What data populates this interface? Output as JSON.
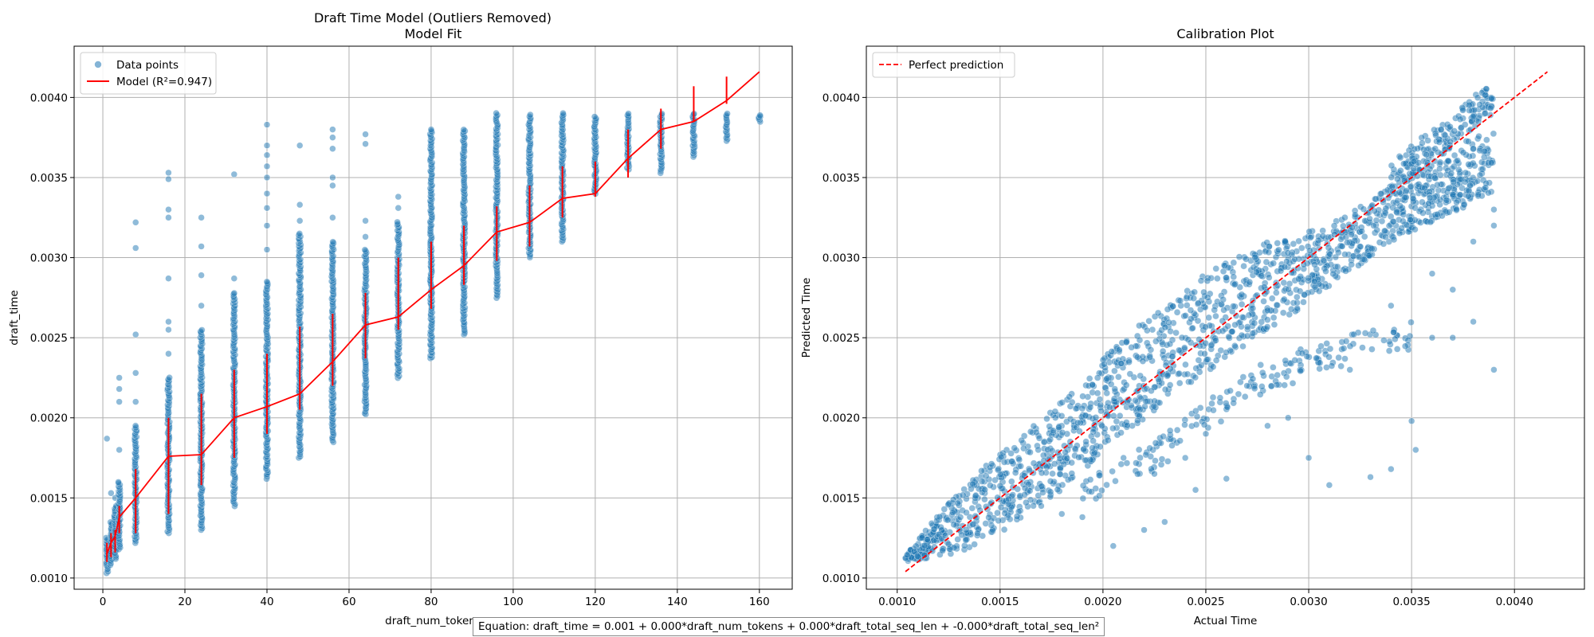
{
  "figure": {
    "suptitle": "Draft Time Model (Outliers Removed)",
    "equation": "Equation: draft_time = 0.001 + 0.000*draft_num_tokens + 0.000*draft_total_seq_len + -0.000*draft_total_seq_len²"
  },
  "colors": {
    "points": "#1f77b4",
    "model_line": "#ff0000",
    "grid": "#b0b0b0"
  },
  "chart_data": [
    {
      "type": "scatter",
      "title": "Model Fit",
      "xlabel": "draft_num_tokens",
      "ylabel": "draft_time",
      "xlim": [
        -7,
        168
      ],
      "ylim": [
        0.00093,
        0.00432
      ],
      "xticks": [
        0,
        20,
        40,
        60,
        80,
        100,
        120,
        140,
        160
      ],
      "xtick_labels": [
        "0",
        "20",
        "40",
        "60",
        "80",
        "100",
        "120",
        "140",
        "160"
      ],
      "yticks": [
        0.001,
        0.0015,
        0.002,
        0.0025,
        0.003,
        0.0035,
        0.004
      ],
      "ytick_labels": [
        "0.0010",
        "0.0015",
        "0.0020",
        "0.0025",
        "0.0030",
        "0.0035",
        "0.0040"
      ],
      "grid": true,
      "legend_position": "top-left",
      "series": [
        {
          "name": "Data points",
          "kind": "scatter",
          "columns": [
            {
              "x": 1,
              "min": 0.00103,
              "max": 0.00125,
              "outliers": [
                0.00187
              ]
            },
            {
              "x": 2,
              "min": 0.00108,
              "max": 0.00135,
              "outliers": [
                0.00153
              ]
            },
            {
              "x": 3,
              "min": 0.00112,
              "max": 0.00145,
              "outliers": [
                0.0015
              ]
            },
            {
              "x": 4,
              "min": 0.00118,
              "max": 0.0016,
              "outliers": [
                0.0018,
                0.0021,
                0.00225,
                0.00218
              ]
            },
            {
              "x": 8,
              "min": 0.00122,
              "max": 0.00195,
              "outliers": [
                0.0021,
                0.00228,
                0.00252,
                0.00306,
                0.00322
              ]
            },
            {
              "x": 16,
              "min": 0.00128,
              "max": 0.00225,
              "outliers": [
                0.0024,
                0.00255,
                0.0026,
                0.00287,
                0.00325,
                0.0033,
                0.00349,
                0.00353
              ]
            },
            {
              "x": 24,
              "min": 0.0013,
              "max": 0.00255,
              "outliers": [
                0.0027,
                0.00289,
                0.00307,
                0.00325
              ]
            },
            {
              "x": 32,
              "min": 0.00145,
              "max": 0.00278,
              "outliers": [
                0.00287,
                0.00352
              ]
            },
            {
              "x": 40,
              "min": 0.00162,
              "max": 0.00285,
              "outliers": [
                0.00305,
                0.0032,
                0.00331,
                0.0034,
                0.0035,
                0.00357,
                0.00364,
                0.0037,
                0.00383
              ]
            },
            {
              "x": 48,
              "min": 0.00175,
              "max": 0.00315,
              "outliers": [
                0.00323,
                0.00333,
                0.0037
              ]
            },
            {
              "x": 56,
              "min": 0.00185,
              "max": 0.0031,
              "outliers": [
                0.00325,
                0.00345,
                0.0035,
                0.00368,
                0.00375,
                0.0038
              ]
            },
            {
              "x": 64,
              "min": 0.00202,
              "max": 0.00305,
              "outliers": [
                0.00313,
                0.00323,
                0.00371,
                0.00377
              ]
            },
            {
              "x": 72,
              "min": 0.00225,
              "max": 0.00322,
              "outliers": [
                0.00331,
                0.00338
              ]
            },
            {
              "x": 80,
              "min": 0.00237,
              "max": 0.0038,
              "outliers": []
            },
            {
              "x": 88,
              "min": 0.00252,
              "max": 0.0038,
              "outliers": []
            },
            {
              "x": 96,
              "min": 0.00275,
              "max": 0.0039,
              "outliers": []
            },
            {
              "x": 104,
              "min": 0.003,
              "max": 0.00389,
              "outliers": []
            },
            {
              "x": 112,
              "min": 0.0031,
              "max": 0.0039,
              "outliers": []
            },
            {
              "x": 120,
              "min": 0.0034,
              "max": 0.00388,
              "outliers": []
            },
            {
              "x": 128,
              "min": 0.00355,
              "max": 0.0039,
              "outliers": []
            },
            {
              "x": 136,
              "min": 0.00353,
              "max": 0.0039,
              "outliers": []
            },
            {
              "x": 144,
              "min": 0.00363,
              "max": 0.0039,
              "outliers": []
            },
            {
              "x": 152,
              "min": 0.00373,
              "max": 0.0039,
              "outliers": []
            },
            {
              "x": 160,
              "min": 0.00385,
              "max": 0.00389,
              "outliers": []
            }
          ]
        },
        {
          "name": "Model (R²=0.947)",
          "kind": "line",
          "x": [
            1,
            2,
            3,
            4,
            8,
            16,
            24,
            32,
            40,
            48,
            56,
            64,
            72,
            80,
            88,
            96,
            104,
            112,
            120,
            128,
            136,
            144,
            152,
            160
          ],
          "y": [
            0.00115,
            0.00122,
            0.00126,
            0.00138,
            0.0015,
            0.00176,
            0.00177,
            0.002,
            0.00207,
            0.00215,
            0.00235,
            0.00258,
            0.00263,
            0.0028,
            0.00295,
            0.00316,
            0.00322,
            0.00337,
            0.0034,
            0.00362,
            0.0038,
            0.00385,
            0.00398,
            0.00416
          ],
          "column_spreads": [
            {
              "x": 1,
              "min": 0.0011,
              "max": 0.00122
            },
            {
              "x": 2,
              "min": 0.00113,
              "max": 0.00128
            },
            {
              "x": 3,
              "min": 0.00116,
              "max": 0.0013
            },
            {
              "x": 4,
              "min": 0.00128,
              "max": 0.00145
            },
            {
              "x": 8,
              "min": 0.00128,
              "max": 0.00168
            },
            {
              "x": 16,
              "min": 0.0014,
              "max": 0.002
            },
            {
              "x": 24,
              "min": 0.00158,
              "max": 0.00215
            },
            {
              "x": 32,
              "min": 0.00175,
              "max": 0.0023
            },
            {
              "x": 40,
              "min": 0.0019,
              "max": 0.0024
            },
            {
              "x": 48,
              "min": 0.00205,
              "max": 0.00257
            },
            {
              "x": 56,
              "min": 0.0022,
              "max": 0.00265
            },
            {
              "x": 64,
              "min": 0.00237,
              "max": 0.00278
            },
            {
              "x": 72,
              "min": 0.00255,
              "max": 0.003
            },
            {
              "x": 80,
              "min": 0.00268,
              "max": 0.0031
            },
            {
              "x": 88,
              "min": 0.00283,
              "max": 0.0032
            },
            {
              "x": 96,
              "min": 0.00298,
              "max": 0.00332
            },
            {
              "x": 104,
              "min": 0.00307,
              "max": 0.00345
            },
            {
              "x": 112,
              "min": 0.00325,
              "max": 0.00357
            },
            {
              "x": 120,
              "min": 0.00338,
              "max": 0.0036
            },
            {
              "x": 128,
              "min": 0.0035,
              "max": 0.0038
            },
            {
              "x": 136,
              "min": 0.00368,
              "max": 0.00393
            },
            {
              "x": 144,
              "min": 0.00385,
              "max": 0.00407
            },
            {
              "x": 152,
              "min": 0.00396,
              "max": 0.00413
            }
          ]
        }
      ]
    },
    {
      "type": "scatter",
      "title": "Calibration Plot",
      "xlabel": "Actual Time",
      "ylabel": "Predicted Time",
      "xlim": [
        0.00085,
        0.00434
      ],
      "ylim": [
        0.00093,
        0.00432
      ],
      "xticks": [
        0.001,
        0.0015,
        0.002,
        0.0025,
        0.003,
        0.0035,
        0.004
      ],
      "xtick_labels": [
        "0.0010",
        "0.0015",
        "0.0020",
        "0.0025",
        "0.0030",
        "0.0035",
        "0.0040"
      ],
      "yticks": [
        0.001,
        0.0015,
        0.002,
        0.0025,
        0.003,
        0.0035,
        0.004
      ],
      "ytick_labels": [
        "0.0010",
        "0.0015",
        "0.0020",
        "0.0025",
        "0.0030",
        "0.0035",
        "0.0040"
      ],
      "grid": true,
      "legend_position": "top-left",
      "series": [
        {
          "name": "Perfect prediction",
          "kind": "dashed-line",
          "x": [
            0.00104,
            0.00416
          ],
          "y": [
            0.00104,
            0.00416
          ]
        },
        {
          "kind": "scatter",
          "main_band": [
            {
              "x": 0.00104,
              "y_min": 0.0011,
              "y_max": 0.00114
            },
            {
              "x": 0.0013,
              "y_min": 0.00116,
              "y_max": 0.00155
            },
            {
              "x": 0.0015,
              "y_min": 0.00128,
              "y_max": 0.00178
            },
            {
              "x": 0.0018,
              "y_min": 0.00155,
              "y_max": 0.0021
            },
            {
              "x": 0.0021,
              "y_min": 0.0019,
              "y_max": 0.0025
            },
            {
              "x": 0.0025,
              "y_min": 0.00228,
              "y_max": 0.0029
            },
            {
              "x": 0.0028,
              "y_min": 0.00255,
              "y_max": 0.0031
            },
            {
              "x": 0.0031,
              "y_min": 0.0028,
              "y_max": 0.0032
            },
            {
              "x": 0.0034,
              "y_min": 0.0031,
              "y_max": 0.00345
            },
            {
              "x": 0.0037,
              "y_min": 0.00328,
              "y_max": 0.0037
            },
            {
              "x": 0.0039,
              "y_min": 0.0034,
              "y_max": 0.0038
            }
          ],
          "upper_band": [
            {
              "x": 0.0034,
              "y_min": 0.0034,
              "y_max": 0.0036
            },
            {
              "x": 0.0036,
              "y_min": 0.0036,
              "y_max": 0.0038
            },
            {
              "x": 0.0038,
              "y_min": 0.0038,
              "y_max": 0.004
            },
            {
              "x": 0.0039,
              "y_min": 0.0039,
              "y_max": 0.00415
            }
          ],
          "lower_band": [
            {
              "x": 0.0019,
              "y_min": 0.00145,
              "y_max": 0.0016
            },
            {
              "x": 0.0023,
              "y_min": 0.0017,
              "y_max": 0.0019
            },
            {
              "x": 0.0027,
              "y_min": 0.0021,
              "y_max": 0.0023
            },
            {
              "x": 0.0031,
              "y_min": 0.0023,
              "y_max": 0.0025
            },
            {
              "x": 0.0035,
              "y_min": 0.0024,
              "y_max": 0.0026
            }
          ],
          "outliers": [
            [
              0.0017,
              0.00145
            ],
            [
              0.0018,
              0.0014
            ],
            [
              0.0019,
              0.00138
            ],
            [
              0.00205,
              0.0012
            ],
            [
              0.0021,
              0.00175
            ],
            [
              0.0022,
              0.0013
            ],
            [
              0.00225,
              0.00165
            ],
            [
              0.0023,
              0.00135
            ],
            [
              0.0024,
              0.00175
            ],
            [
              0.00245,
              0.00155
            ],
            [
              0.0025,
              0.0019
            ],
            [
              0.0026,
              0.00162
            ],
            [
              0.0027,
              0.0022
            ],
            [
              0.0028,
              0.00195
            ],
            [
              0.0029,
              0.002
            ],
            [
              0.003,
              0.00175
            ],
            [
              0.0031,
              0.00158
            ],
            [
              0.0032,
              0.0023
            ],
            [
              0.0033,
              0.00163
            ],
            [
              0.0034,
              0.00168
            ],
            [
              0.00352,
              0.0018
            ],
            [
              0.0035,
              0.00198
            ],
            [
              0.0036,
              0.0025
            ],
            [
              0.0037,
              0.0025
            ],
            [
              0.0038,
              0.0026
            ],
            [
              0.0039,
              0.0023
            ],
            [
              0.0038,
              0.0031
            ],
            [
              0.0039,
              0.0032
            ],
            [
              0.0036,
              0.0029
            ],
            [
              0.0034,
              0.0027
            ],
            [
              0.0037,
              0.0028
            ],
            [
              0.0039,
              0.0033
            ]
          ]
        }
      ]
    }
  ]
}
